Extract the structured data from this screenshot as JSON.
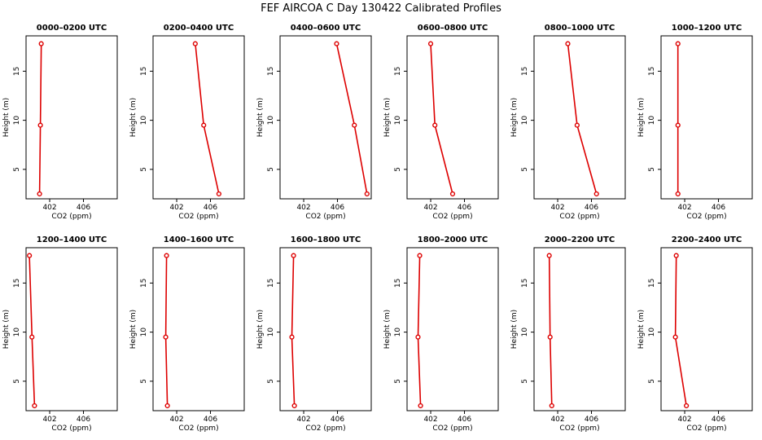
{
  "figure": {
    "title": "FEF AIRCOA C  Day 130422  Calibrated Profiles"
  },
  "chart_data": [
    {
      "type": "line",
      "title": "0000–0200 UTC",
      "xlabel": "CO2 (ppm)",
      "ylabel": "Height (m)",
      "xlim": [
        399.2,
        410.0
      ],
      "ylim": [
        2.0,
        18.6
      ],
      "xticks": [
        402,
        406
      ],
      "yticks": [
        5,
        10,
        15
      ],
      "series": [
        {
          "color": "#dd0000",
          "x": [
            400.8,
            400.9,
            401.0
          ],
          "y": [
            2.5,
            9.5,
            17.8
          ]
        }
      ]
    },
    {
      "type": "line",
      "title": "0200–0400 UTC",
      "xlabel": "CO2 (ppm)",
      "ylabel": "Height (m)",
      "xlim": [
        399.2,
        410.0
      ],
      "ylim": [
        2.0,
        18.6
      ],
      "xticks": [
        402,
        406
      ],
      "yticks": [
        5,
        10,
        15
      ],
      "series": [
        {
          "color": "#dd0000",
          "x": [
            407.0,
            405.2,
            404.2
          ],
          "y": [
            2.5,
            9.5,
            17.8
          ]
        }
      ]
    },
    {
      "type": "line",
      "title": "0400–0600 UTC",
      "xlabel": "CO2 (ppm)",
      "ylabel": "Height (m)",
      "xlim": [
        399.2,
        410.0
      ],
      "ylim": [
        2.0,
        18.6
      ],
      "xticks": [
        402,
        406
      ],
      "yticks": [
        5,
        10,
        15
      ],
      "series": [
        {
          "color": "#dd0000",
          "x": [
            409.5,
            408.0,
            405.9
          ],
          "y": [
            2.5,
            9.5,
            17.8
          ]
        }
      ]
    },
    {
      "type": "line",
      "title": "0600–0800 UTC",
      "xlabel": "CO2 (ppm)",
      "ylabel": "Height (m)",
      "xlim": [
        399.2,
        410.0
      ],
      "ylim": [
        2.0,
        18.6
      ],
      "xticks": [
        402,
        406
      ],
      "yticks": [
        5,
        10,
        15
      ],
      "series": [
        {
          "color": "#dd0000",
          "x": [
            404.6,
            402.5,
            402.0
          ],
          "y": [
            2.5,
            9.5,
            17.8
          ]
        }
      ]
    },
    {
      "type": "line",
      "title": "0800–1000 UTC",
      "xlabel": "CO2 (ppm)",
      "ylabel": "Height (m)",
      "xlim": [
        399.2,
        410.0
      ],
      "ylim": [
        2.0,
        18.6
      ],
      "xticks": [
        402,
        406
      ],
      "yticks": [
        5,
        10,
        15
      ],
      "series": [
        {
          "color": "#dd0000",
          "x": [
            406.6,
            404.3,
            403.2
          ],
          "y": [
            2.5,
            9.5,
            17.8
          ]
        }
      ]
    },
    {
      "type": "line",
      "title": "1000–1200 UTC",
      "xlabel": "CO2 (ppm)",
      "ylabel": "Height (m)",
      "xlim": [
        399.2,
        410.0
      ],
      "ylim": [
        2.0,
        18.6
      ],
      "xticks": [
        402,
        406
      ],
      "yticks": [
        5,
        10,
        15
      ],
      "series": [
        {
          "color": "#dd0000",
          "x": [
            401.2,
            401.2,
            401.2
          ],
          "y": [
            2.5,
            9.5,
            17.8
          ]
        }
      ]
    },
    {
      "type": "line",
      "title": "1200–1400 UTC",
      "xlabel": "CO2 (ppm)",
      "ylabel": "Height (m)",
      "xlim": [
        399.2,
        410.0
      ],
      "ylim": [
        2.0,
        18.6
      ],
      "xticks": [
        402,
        406
      ],
      "yticks": [
        5,
        10,
        15
      ],
      "series": [
        {
          "color": "#dd0000",
          "x": [
            400.2,
            399.9,
            399.6
          ],
          "y": [
            2.5,
            9.5,
            17.8
          ]
        }
      ]
    },
    {
      "type": "line",
      "title": "1400–1600 UTC",
      "xlabel": "CO2 (ppm)",
      "ylabel": "Height (m)",
      "xlim": [
        399.2,
        410.0
      ],
      "ylim": [
        2.0,
        18.6
      ],
      "xticks": [
        402,
        406
      ],
      "yticks": [
        5,
        10,
        15
      ],
      "series": [
        {
          "color": "#dd0000",
          "x": [
            400.9,
            400.7,
            400.8
          ],
          "y": [
            2.5,
            9.5,
            17.8
          ]
        }
      ]
    },
    {
      "type": "line",
      "title": "1600–1800 UTC",
      "xlabel": "CO2 (ppm)",
      "ylabel": "Height (m)",
      "xlim": [
        399.2,
        410.0
      ],
      "ylim": [
        2.0,
        18.6
      ],
      "xticks": [
        402,
        406
      ],
      "yticks": [
        5,
        10,
        15
      ],
      "series": [
        {
          "color": "#dd0000",
          "x": [
            400.9,
            400.6,
            400.8
          ],
          "y": [
            2.5,
            9.5,
            17.8
          ]
        }
      ]
    },
    {
      "type": "line",
      "title": "1800–2000 UTC",
      "xlabel": "CO2 (ppm)",
      "ylabel": "Height (m)",
      "xlim": [
        399.2,
        410.0
      ],
      "ylim": [
        2.0,
        18.6
      ],
      "xticks": [
        402,
        406
      ],
      "yticks": [
        5,
        10,
        15
      ],
      "series": [
        {
          "color": "#dd0000",
          "x": [
            400.8,
            400.5,
            400.7
          ],
          "y": [
            2.5,
            9.5,
            17.8
          ]
        }
      ]
    },
    {
      "type": "line",
      "title": "2000–2200 UTC",
      "xlabel": "CO2 (ppm)",
      "ylabel": "Height (m)",
      "xlim": [
        399.2,
        410.0
      ],
      "ylim": [
        2.0,
        18.6
      ],
      "xticks": [
        402,
        406
      ],
      "yticks": [
        5,
        10,
        15
      ],
      "series": [
        {
          "color": "#dd0000",
          "x": [
            401.3,
            401.1,
            401.0
          ],
          "y": [
            2.5,
            9.5,
            17.8
          ]
        }
      ]
    },
    {
      "type": "line",
      "title": "2200–2400 UTC",
      "xlabel": "CO2 (ppm)",
      "ylabel": "Height (m)",
      "xlim": [
        399.2,
        410.0
      ],
      "ylim": [
        2.0,
        18.6
      ],
      "xticks": [
        402,
        406
      ],
      "yticks": [
        5,
        10,
        15
      ],
      "series": [
        {
          "color": "#dd0000",
          "x": [
            402.2,
            400.9,
            401.0
          ],
          "y": [
            2.5,
            9.5,
            17.8
          ]
        }
      ]
    }
  ]
}
